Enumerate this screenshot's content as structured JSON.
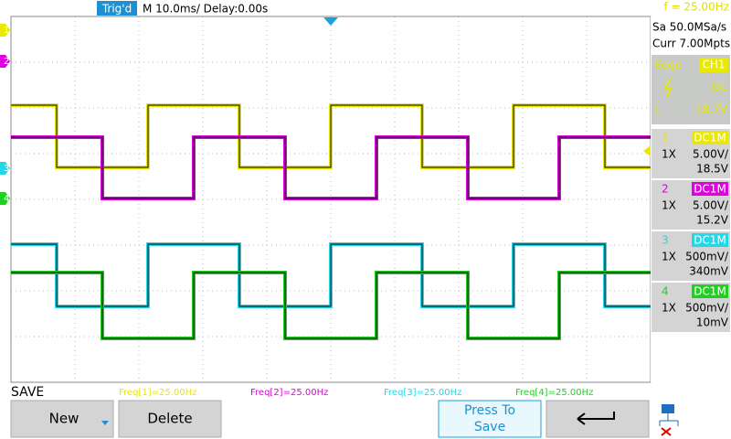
{
  "top_bar": {
    "trigger_status": "Trig'd",
    "timebase": "M 10.0ms/ Delay:0.00s",
    "frequency": "f = 25.00Hz"
  },
  "acquisition": {
    "sample_rate": "Sa 50.0MSa/s",
    "memory": "Curr 7.00Mpts"
  },
  "trigger": {
    "mode": "Edge",
    "source": "CH1",
    "coupling": "DC",
    "level_label": "L",
    "level": "18.7V"
  },
  "channels": [
    {
      "number": "1",
      "coupling": "DC1M",
      "probe": "1X",
      "scale": "5.00V/",
      "offset": "18.5V",
      "marker": "1",
      "measurement": "Freq[1]=25.00Hz"
    },
    {
      "number": "2",
      "coupling": "DC1M",
      "probe": "1X",
      "scale": "5.00V/",
      "offset": "15.2V",
      "marker": "2",
      "measurement": "Freq[2]=25.00Hz"
    },
    {
      "number": "3",
      "coupling": "DC1M",
      "probe": "1X",
      "scale": "500mV/",
      "offset": "340mV",
      "marker": "3",
      "measurement": "Freq[3]=25.00Hz"
    },
    {
      "number": "4",
      "coupling": "DC1M",
      "probe": "1X",
      "scale": "500mV/",
      "offset": "10mV",
      "marker": "4",
      "measurement": "Freq[4]=25.00Hz"
    }
  ],
  "menu": {
    "title": "SAVE",
    "buttons": [
      "New",
      "Delete",
      "Press To Save"
    ]
  }
}
